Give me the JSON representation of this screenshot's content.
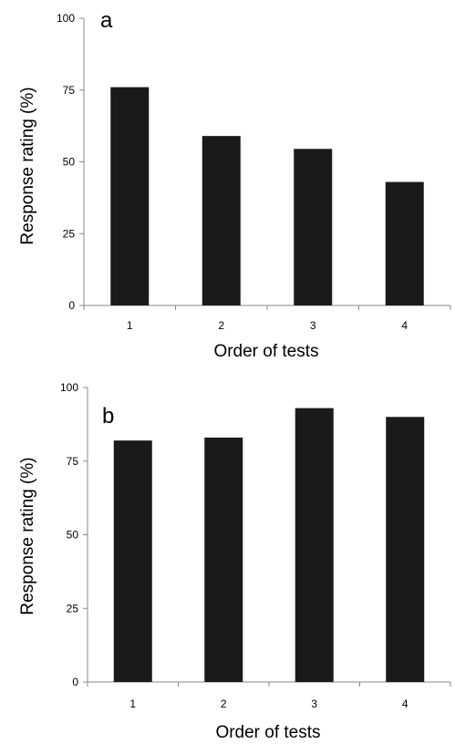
{
  "chart_data": [
    {
      "panel_label": "a",
      "type": "bar",
      "categories": [
        "1",
        "2",
        "3",
        "4"
      ],
      "values": [
        76,
        59,
        54.5,
        43
      ],
      "xlabel": "Order of tests",
      "ylabel": "Response rating (%)",
      "ylim": [
        0,
        100
      ],
      "yticks": [
        "0",
        "25",
        "50",
        "75",
        "100"
      ],
      "grid": false,
      "bar_color": "#1a1a1a"
    },
    {
      "panel_label": "b",
      "type": "bar",
      "categories": [
        "1",
        "2",
        "3",
        "4"
      ],
      "values": [
        82,
        83,
        93,
        90
      ],
      "xlabel": "Order of tests",
      "ylabel": "Response rating (%)",
      "ylim": [
        0,
        100
      ],
      "yticks": [
        "0",
        "25",
        "50",
        "75",
        "100"
      ],
      "grid": false,
      "bar_color": "#1a1a1a"
    }
  ]
}
